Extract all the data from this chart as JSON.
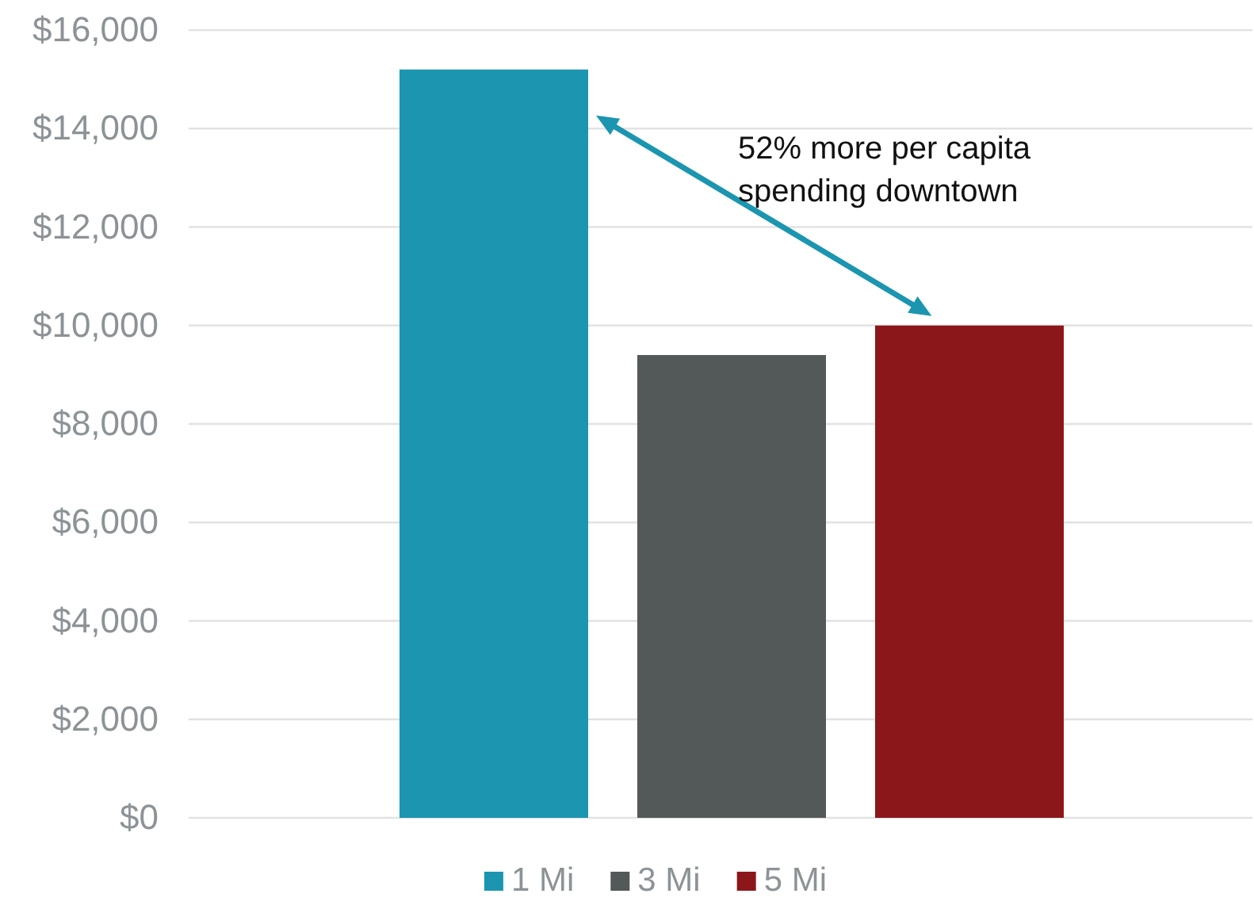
{
  "chart_data": {
    "type": "bar",
    "categories": [
      null
    ],
    "series": [
      {
        "name": "1 Mi",
        "color": "#1b95b0",
        "values": [
          15200
        ]
      },
      {
        "name": "3 Mi",
        "color": "#535858",
        "values": [
          9400
        ]
      },
      {
        "name": "5 Mi",
        "color": "#8c171b",
        "values": [
          10000
        ]
      }
    ],
    "ylim": [
      0,
      16000
    ],
    "yticks": [
      {
        "value": 0,
        "label": "$0"
      },
      {
        "value": 2000,
        "label": "$2,000"
      },
      {
        "value": 4000,
        "label": "$4,000"
      },
      {
        "value": 6000,
        "label": "$6,000"
      },
      {
        "value": 8000,
        "label": "$8,000"
      },
      {
        "value": 10000,
        "label": "$10,000"
      },
      {
        "value": 12000,
        "label": "$12,000"
      },
      {
        "value": 14000,
        "label": "$14,000"
      },
      {
        "value": 16000,
        "label": "$16,000"
      }
    ],
    "grid": "y",
    "legend": "bottom",
    "annotations": [
      "52% more per capita spending downtown"
    ]
  }
}
